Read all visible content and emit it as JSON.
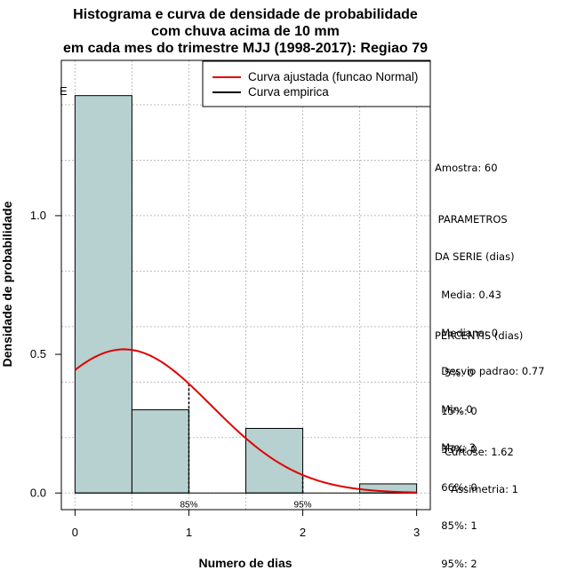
{
  "chart_data": {
    "type": "bar",
    "title_lines": [
      "Histograma e curva de densidade de probabilidade",
      "com chuva acima de 10 mm",
      "em cada mes do trimestre MJJ (1998-2017): Regiao 79"
    ],
    "xlabel": "Numero de dias",
    "ylabel": "Densidade de probabilidade",
    "xlim": [
      -0.12,
      3.12
    ],
    "ylim": [
      -0.06,
      1.56
    ],
    "x_ticks": [
      0,
      1,
      2,
      3
    ],
    "y_ticks": [
      0.0,
      0.5,
      1.0
    ],
    "y_tick_labels": [
      "0.0",
      "0.5",
      "1.0"
    ],
    "grid": true,
    "bins": [
      {
        "x0": 0.0,
        "x1": 0.5,
        "density": 1.433
      },
      {
        "x0": 0.5,
        "x1": 1.0,
        "density": 0.3
      },
      {
        "x0": 1.0,
        "x1": 1.5,
        "density": 0.0
      },
      {
        "x0": 1.5,
        "x1": 2.0,
        "density": 0.233
      },
      {
        "x0": 2.0,
        "x1": 2.5,
        "density": 0.0
      },
      {
        "x0": 2.5,
        "x1": 3.0,
        "density": 0.033
      }
    ],
    "bar_color": "#b7d0d0",
    "normal_fit": {
      "mean": 0.43,
      "sd": 0.77,
      "x_from": 0.0,
      "x_to": 3.0,
      "color": "#e00000"
    },
    "percentile_markers": [
      {
        "x": 1,
        "label": "85%"
      },
      {
        "x": 2,
        "label": "95%"
      }
    ],
    "legend": {
      "position": "top-right",
      "entries": [
        {
          "label": "Curva ajustada (funcao Normal)",
          "color": "#e00000"
        },
        {
          "label": "Curva empirica",
          "color": "#000000"
        }
      ]
    },
    "corner_mark": "E"
  },
  "stats": {
    "amostra": "Amostra: 60",
    "params_lines": [
      " PARAMETROS",
      "DA SERIE (dias)",
      "  Media: 0.43",
      "  Mediana: 0",
      "  Desvio padrao: 0.77",
      "  Min: 0",
      "  Max: 3"
    ],
    "percentis_lines": [
      "PERCENTIS (dias)",
      "   5%: 0",
      "  15%: 0",
      "  33%: 0",
      "  66%: 0",
      "  85%: 1",
      "  95%: 2"
    ],
    "shape_lines": [
      "Curtose: 1.62",
      "  Assimetria: 1"
    ]
  }
}
